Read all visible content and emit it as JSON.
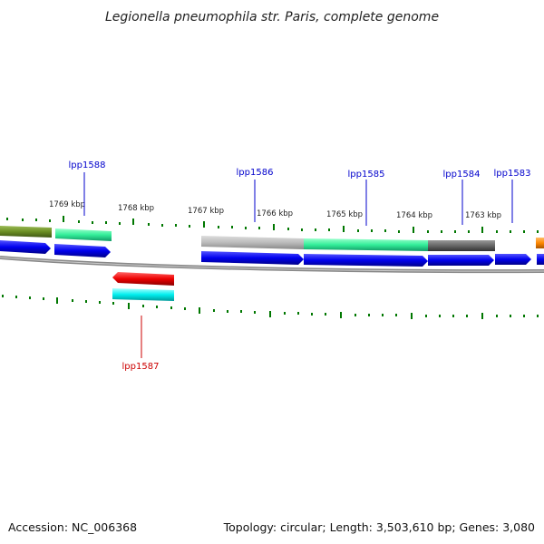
{
  "title": "Legionella pneumophila str. Paris, complete genome",
  "footer": {
    "accession": "Accession: NC_006368",
    "summary": "Topology: circular; Length: 3,503,610 bp; Genes: 3,080"
  },
  "kbp_labels": [
    "1769 kbp",
    "1768 kbp",
    "1767 kbp",
    "1766 kbp",
    "1765 kbp",
    "1764 kbp",
    "1763 kbp"
  ],
  "genes": [
    {
      "label": "lpp1588",
      "strand": "forward"
    },
    {
      "label": "lpp1587",
      "strand": "reverse"
    },
    {
      "label": "lpp1586",
      "strand": "forward"
    },
    {
      "label": "lpp1585",
      "strand": "forward"
    },
    {
      "label": "lpp1584",
      "strand": "forward"
    },
    {
      "label": "lpp1583",
      "strand": "forward"
    }
  ],
  "colors": {
    "forward_label": "#0000cc",
    "reverse_label": "#cc0000",
    "cds_blue": "#0000ee",
    "feature_green": "#33ee99",
    "feature_olive": "#6b8e23",
    "feature_grey_light": "#bbbbbb",
    "feature_grey_dark": "#666666",
    "feature_red": "#ee0000",
    "feature_cyan": "#00eeee",
    "feature_orange": "#ff8800",
    "backbone": "#888888",
    "tick": "#007700"
  }
}
